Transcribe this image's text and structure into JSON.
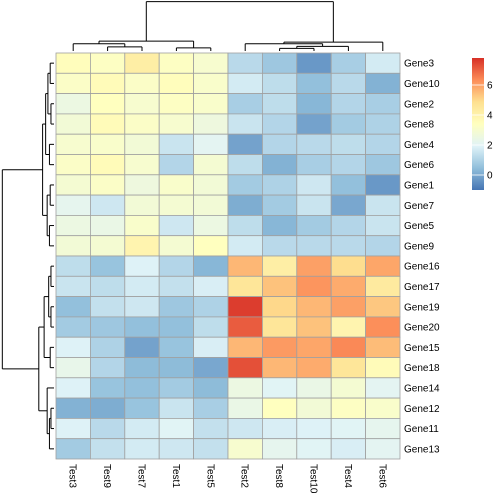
{
  "chart_data": {
    "type": "heatmap",
    "title": "",
    "columns": [
      "Test3",
      "Test9",
      "Test7",
      "Test1",
      "Test5",
      "Test2",
      "Test8",
      "Test10",
      "Test4",
      "Test6"
    ],
    "rows": [
      "Gene3",
      "Gene10",
      "Gene2",
      "Gene8",
      "Gene4",
      "Gene6",
      "Gene1",
      "Gene7",
      "Gene5",
      "Gene9",
      "Gene16",
      "Gene17",
      "Gene19",
      "Gene20",
      "Gene15",
      "Gene18",
      "Gene14",
      "Gene12",
      "Gene11",
      "Gene13"
    ],
    "values": [
      [
        3.5,
        3.3,
        4.2,
        3.3,
        3.0,
        1.2,
        0.7,
        -0.3,
        0.9,
        1.7
      ],
      [
        3.2,
        3.6,
        3.2,
        3.5,
        3.1,
        1.7,
        1.3,
        0.5,
        1.2,
        0.2
      ],
      [
        2.5,
        3.4,
        3.0,
        3.3,
        3.1,
        0.9,
        1.3,
        0.3,
        1.1,
        0.9
      ],
      [
        2.8,
        3.6,
        3.2,
        3.0,
        2.6,
        1.5,
        1.1,
        -0.1,
        0.8,
        1.0
      ],
      [
        3.0,
        3.1,
        2.8,
        1.5,
        2.1,
        -0.1,
        1.1,
        1.2,
        1.3,
        1.1
      ],
      [
        3.2,
        3.6,
        3.0,
        1.1,
        2.9,
        1.3,
        0.2,
        0.9,
        1.1,
        0.7
      ],
      [
        2.9,
        3.2,
        2.6,
        3.1,
        2.8,
        0.8,
        1.0,
        1.6,
        0.5,
        -0.3
      ],
      [
        2.2,
        1.6,
        2.8,
        2.9,
        2.8,
        0.1,
        0.8,
        1.5,
        0.0,
        1.5
      ],
      [
        2.5,
        2.4,
        3.1,
        1.6,
        2.5,
        1.3,
        0.3,
        0.8,
        1.1,
        1.5
      ],
      [
        2.8,
        2.9,
        3.9,
        2.9,
        3.4,
        1.7,
        1.2,
        1.2,
        1.2,
        1.1
      ],
      [
        1.3,
        0.6,
        1.9,
        1.1,
        0.3,
        5.6,
        4.2,
        6.0,
        4.9,
        5.9
      ],
      [
        1.5,
        1.3,
        1.7,
        1.4,
        1.8,
        4.6,
        5.4,
        6.2,
        5.8,
        4.4
      ],
      [
        0.5,
        1.4,
        1.6,
        0.7,
        1.0,
        7.6,
        5.0,
        5.6,
        6.0,
        5.3
      ],
      [
        0.8,
        0.7,
        0.5,
        0.5,
        1.3,
        7.1,
        4.6,
        5.4,
        3.9,
        6.3
      ],
      [
        1.9,
        1.0,
        -0.1,
        0.6,
        1.8,
        5.6,
        6.1,
        5.9,
        6.4,
        5.5
      ],
      [
        2.3,
        1.1,
        0.4,
        0.4,
        0.0,
        7.3,
        5.6,
        5.8,
        4.6,
        3.6
      ],
      [
        1.9,
        0.6,
        0.5,
        0.8,
        0.4,
        2.5,
        2.0,
        2.4,
        2.9,
        2.1
      ],
      [
        0.2,
        0.1,
        0.6,
        1.5,
        0.9,
        2.4,
        3.4,
        2.8,
        3.3,
        3.1
      ],
      [
        1.9,
        1.2,
        1.7,
        2.0,
        1.4,
        1.6,
        1.8,
        1.9,
        2.0,
        2.2
      ],
      [
        0.8,
        1.4,
        1.7,
        1.6,
        1.4,
        3.0,
        2.2,
        2.0,
        1.8,
        2.1
      ]
    ],
    "color_scale": {
      "min": -1.0,
      "max": 7.8,
      "stops": [
        "#4575B4",
        "#91BFDB",
        "#E0F3F8",
        "#FFFFBF",
        "#FEE090",
        "#FC8D59",
        "#D73027"
      ],
      "legend_ticks": [
        0,
        2,
        4,
        6
      ]
    },
    "cell_border_color": "#A0A0A0",
    "legend_placement": "right",
    "row_dendrogram": true,
    "column_dendrogram": true
  }
}
